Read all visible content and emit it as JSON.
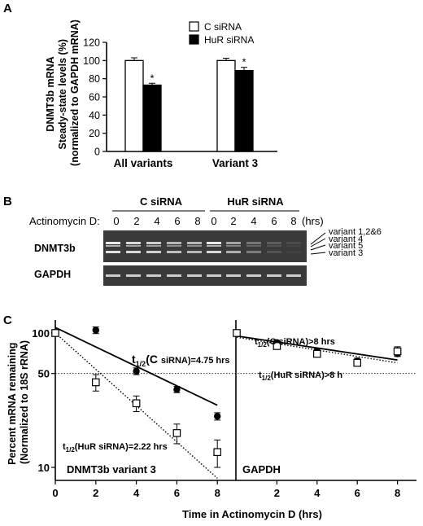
{
  "panels": {
    "a": {
      "letter": "A",
      "ylabel_lines": [
        "DNMT3b mRNA",
        "Steady-state levels (%)",
        "(normalized to GAPDH mRNA)"
      ],
      "legend": [
        {
          "label": "C siRNA",
          "fill": "#ffffff"
        },
        {
          "label": "HuR siRNA",
          "fill": "#000000"
        }
      ],
      "star": "*"
    },
    "b": {
      "letter": "B",
      "group_labels": [
        "C siRNA",
        "HuR siRNA"
      ],
      "treatment_label": "Actinomycin D:",
      "time_labels": [
        "0",
        "2",
        "4",
        "6",
        "8",
        "0",
        "2",
        "4",
        "6",
        "8"
      ],
      "time_unit": "(hrs)",
      "row_labels": [
        "DNMT3b",
        "GAPDH"
      ],
      "band_labels": [
        "variant 1,2&6",
        "variant 4",
        "variant 5",
        "variant 3"
      ]
    },
    "c": {
      "letter": "C",
      "ylabel_lines": [
        "Percent mRNA remaining",
        "(Normalized to 18S rRNA)"
      ],
      "xlabel": "Time in Actinomycin D (hrs)",
      "left_title": "DNMT3b variant 3",
      "right_title": "GAPDH",
      "halflife": {
        "left_c": [
          "t",
          "1/2",
          "(C ",
          "siRNA)=4.75 hrs"
        ],
        "left_hur": [
          "t",
          "1/2",
          "(HuR siRNA)=2.22 hrs"
        ],
        "right_c": [
          "t",
          "1/2",
          "(C siRNA)>8 hrs"
        ],
        "right_hur": [
          "t",
          "1/2",
          "(HuR siRNA)>8 h"
        ]
      }
    }
  },
  "chart_data": [
    {
      "type": "bar",
      "panel": "A",
      "categories": [
        "All variants",
        "Variant 3"
      ],
      "series": [
        {
          "name": "C siRNA",
          "values": [
            100,
            100
          ],
          "errors": [
            3,
            2.5
          ]
        },
        {
          "name": "HuR siRNA",
          "values": [
            73,
            89
          ],
          "errors": [
            2,
            3.5
          ]
        }
      ],
      "significant": [
        false,
        true,
        false,
        true
      ],
      "ylim": [
        0,
        120
      ],
      "yticks": [
        0,
        20,
        40,
        60,
        80,
        100,
        120
      ],
      "ylabel": "DNMT3b mRNA Steady-state levels (%) (normalized to GAPDH mRNA)"
    },
    {
      "type": "scatter",
      "panel": "C",
      "title": "DNMT3b variant 3",
      "yscale": "log",
      "xlim": [
        0,
        9
      ],
      "ylim": [
        8,
        125
      ],
      "xticks": [
        0,
        2,
        4,
        6,
        8
      ],
      "yticks": [
        10,
        50,
        100
      ],
      "reference_line": 50,
      "series": [
        {
          "name": "C siRNA",
          "marker": "filled-circle",
          "x": [
            0,
            2,
            4,
            6,
            8
          ],
          "y": [
            100,
            105,
            52,
            38,
            24
          ],
          "errors": [
            4,
            6,
            3,
            2,
            1.5
          ],
          "fit": {
            "style": "solid",
            "x": [
              0,
              8
            ],
            "y": [
              110,
              29
            ]
          }
        },
        {
          "name": "HuR siRNA",
          "marker": "open-square",
          "x": [
            0,
            2,
            4,
            6,
            8
          ],
          "y": [
            100,
            43,
            30,
            18,
            13
          ],
          "errors": [
            4,
            6,
            4,
            3,
            3
          ],
          "fit": {
            "style": "dotted",
            "x": [
              0,
              8
            ],
            "y": [
              100,
              8.3
            ]
          }
        }
      ]
    },
    {
      "type": "scatter",
      "panel": "C",
      "title": "GAPDH",
      "yscale": "log",
      "xlim": [
        0,
        9
      ],
      "ylim": [
        8,
        125
      ],
      "xticks": [
        2,
        4,
        6,
        8
      ],
      "yticks": [
        10,
        50,
        100
      ],
      "reference_line": 50,
      "series": [
        {
          "name": "C siRNA",
          "marker": "filled-circle",
          "x": [
            0,
            2,
            4,
            6,
            8
          ],
          "y": [
            100,
            85,
            73,
            62,
            70
          ],
          "errors": [
            4,
            3,
            3,
            3,
            3
          ],
          "fit": {
            "style": "solid",
            "x": [
              0,
              8
            ],
            "y": [
              95,
              63
            ]
          }
        },
        {
          "name": "HuR siRNA",
          "marker": "open-square",
          "x": [
            0,
            2,
            4,
            6,
            8
          ],
          "y": [
            100,
            80,
            70,
            60,
            73
          ],
          "errors": [
            5,
            4,
            3,
            3,
            6
          ],
          "fit": {
            "style": "dotted",
            "x": [
              0,
              8
            ],
            "y": [
              93,
              60
            ]
          }
        }
      ]
    }
  ]
}
